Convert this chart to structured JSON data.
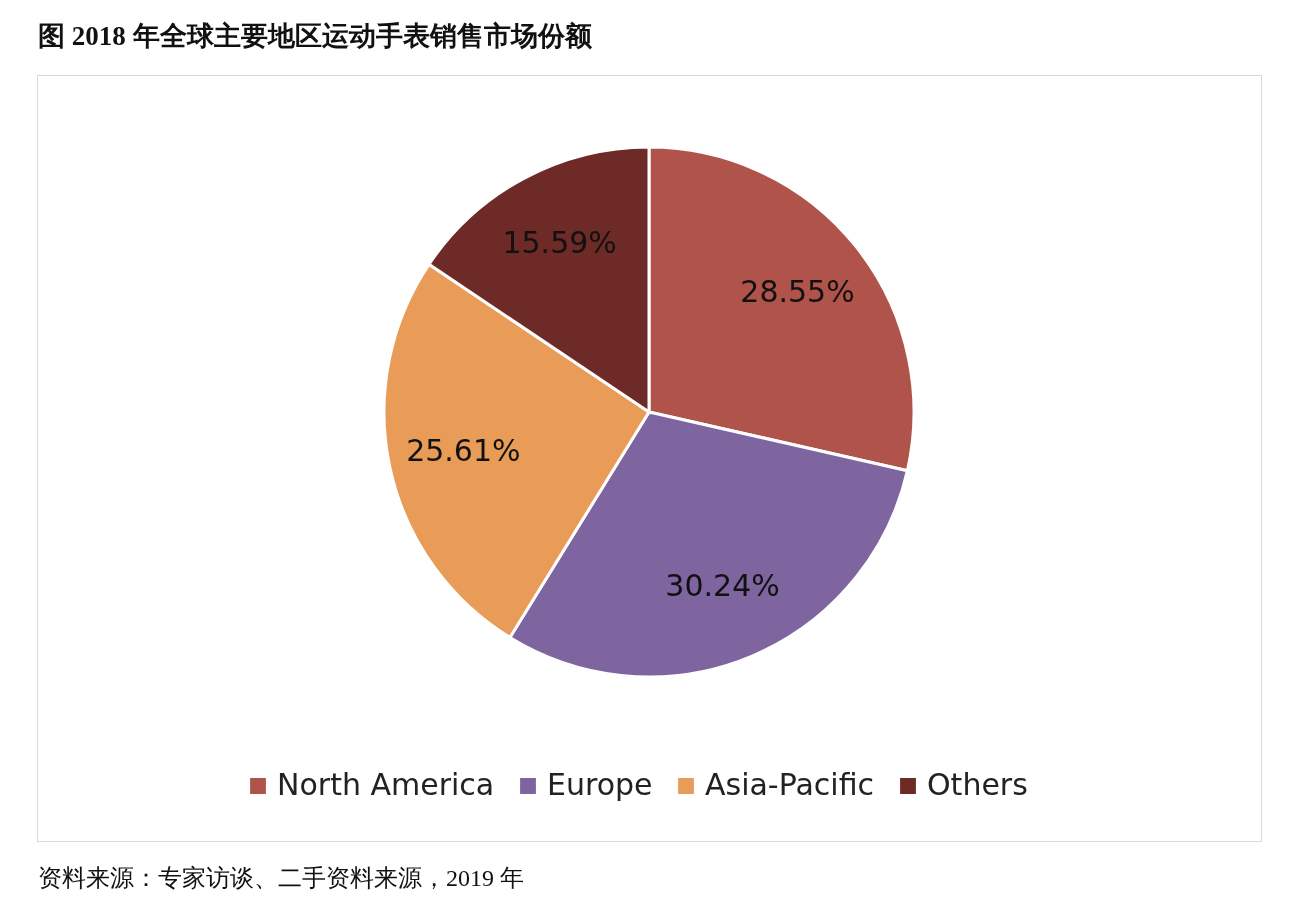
{
  "chart_data": {
    "type": "pie",
    "title": "图 2018 年全球主要地区运动手表销售市场份额",
    "categories": [
      "North America",
      "Europe",
      "Asia-Pacific",
      "Others"
    ],
    "values": [
      28.55,
      30.24,
      25.61,
      15.59
    ],
    "colors": [
      "#b0534b",
      "#7e65a0",
      "#e99c57",
      "#6d2a26"
    ],
    "value_labels": [
      "28.55%",
      "30.24%",
      "25.61%",
      "15.59%"
    ],
    "legend": "bottom",
    "annotations": [
      "资料来源：专家访谈、二手资料来源，2019 年"
    ]
  }
}
